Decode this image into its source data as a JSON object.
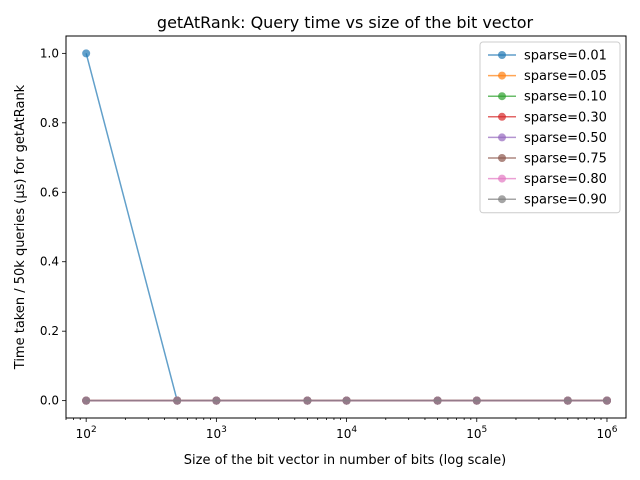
{
  "chart_data": {
    "type": "line",
    "title": "getAtRank: Query time vs size of the bit vector",
    "xlabel": "Size of the bit vector in number of bits (log scale)",
    "ylabel": "Time taken / 50k queries (µs) for getAtRank",
    "x_scale": "log",
    "xlim": [
      70,
      1400000
    ],
    "ylim": [
      -0.05,
      1.05
    ],
    "x_ticks": [
      {
        "value": 100,
        "base": "10",
        "exp": "2"
      },
      {
        "value": 1000,
        "base": "10",
        "exp": "3"
      },
      {
        "value": 10000,
        "base": "10",
        "exp": "4"
      },
      {
        "value": 100000,
        "base": "10",
        "exp": "5"
      },
      {
        "value": 1000000,
        "base": "10",
        "exp": "6"
      }
    ],
    "y_ticks": [
      {
        "value": 0.0,
        "label": "0.0"
      },
      {
        "value": 0.2,
        "label": "0.2"
      },
      {
        "value": 0.4,
        "label": "0.4"
      },
      {
        "value": 0.6,
        "label": "0.6"
      },
      {
        "value": 0.8,
        "label": "0.8"
      },
      {
        "value": 1.0,
        "label": "1.0"
      }
    ],
    "x": [
      100,
      500,
      1000,
      5000,
      10000,
      50000,
      100000,
      500000,
      1000000
    ],
    "series": [
      {
        "name": "sparse=0.01",
        "color": "#1f77b4",
        "values": [
          1,
          0,
          0,
          0,
          0,
          0,
          0,
          0,
          0
        ]
      },
      {
        "name": "sparse=0.05",
        "color": "#ff7f0e",
        "values": [
          0,
          0,
          0,
          0,
          0,
          0,
          0,
          0,
          0
        ]
      },
      {
        "name": "sparse=0.10",
        "color": "#2ca02c",
        "values": [
          0,
          0,
          0,
          0,
          0,
          0,
          0,
          0,
          0
        ]
      },
      {
        "name": "sparse=0.30",
        "color": "#d62728",
        "values": [
          0,
          0,
          0,
          0,
          0,
          0,
          0,
          0,
          0
        ]
      },
      {
        "name": "sparse=0.50",
        "color": "#9467bd",
        "values": [
          0,
          0,
          0,
          0,
          0,
          0,
          0,
          0,
          0
        ]
      },
      {
        "name": "sparse=0.75",
        "color": "#8c564b",
        "values": [
          0,
          0,
          0,
          0,
          0,
          0,
          0,
          0,
          0
        ]
      },
      {
        "name": "sparse=0.80",
        "color": "#e377c2",
        "values": [
          0,
          0,
          0,
          0,
          0,
          0,
          0,
          0,
          0
        ]
      },
      {
        "name": "sparse=0.90",
        "color": "#7f7f7f",
        "values": [
          0,
          0,
          0,
          0,
          0,
          0,
          0,
          0,
          0
        ]
      }
    ],
    "grid": false,
    "legend_position": "top-right"
  }
}
